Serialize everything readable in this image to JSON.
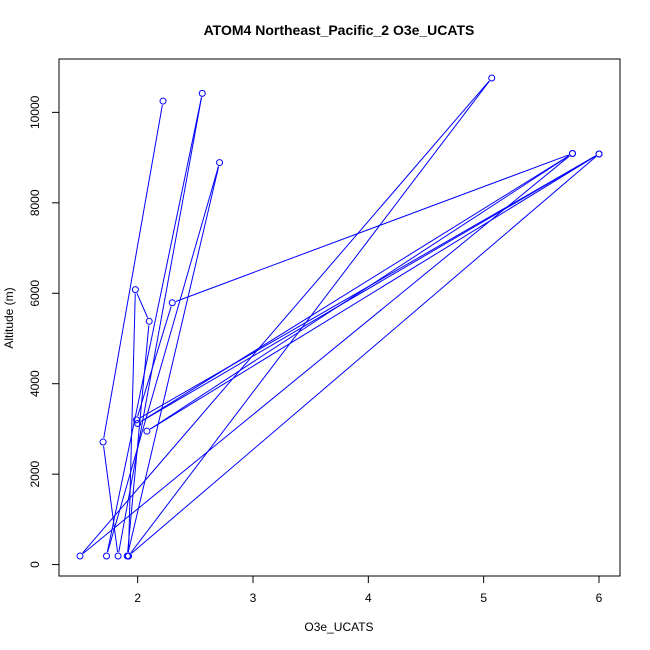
{
  "chart_data": {
    "type": "line",
    "title": "ATOM4 Northeast_Pacific_2 O3e_UCATS",
    "xlabel": "O3e_UCATS",
    "ylabel": "Altitude (m)",
    "xlim": [
      1.5,
      6.0
    ],
    "ylim": [
      190,
      10760
    ],
    "x_ticks": [
      2,
      3,
      4,
      5,
      6
    ],
    "y_ticks": [
      0,
      2000,
      4000,
      6000,
      8000,
      10000
    ],
    "grid": false,
    "legend": "none",
    "color": "#0000ff",
    "series": [
      {
        "x": [
          2.22,
          1.7,
          1.83,
          2.56,
          1.73,
          2.71,
          1.91,
          2.1,
          1.98,
          1.92,
          5.07,
          1.5,
          5.77,
          2.08,
          6.0,
          1.99,
          2.3,
          5.77,
          2.0,
          6.0,
          1.92
        ],
        "y": [
          10250,
          2710,
          190,
          10420,
          190,
          8890,
          190,
          5380,
          6080,
          190,
          10760,
          190,
          9090,
          2950,
          9080,
          3200,
          5790,
          9090,
          3120,
          9080,
          190
        ]
      }
    ]
  }
}
